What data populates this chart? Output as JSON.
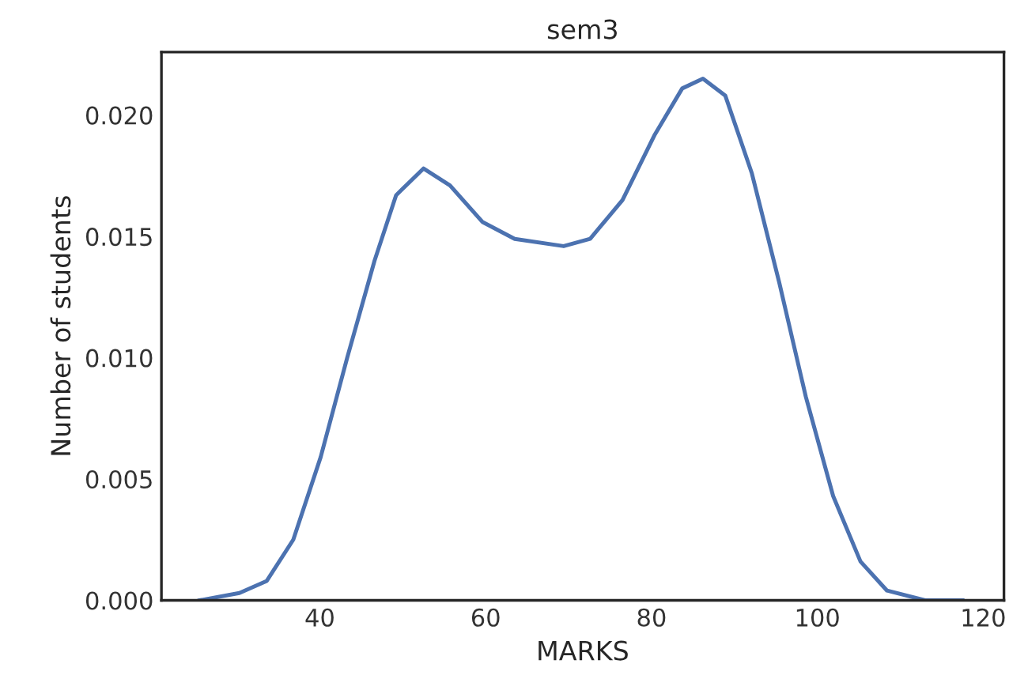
{
  "chart_data": {
    "type": "line",
    "title": "sem3",
    "xlabel": "MARKS",
    "ylabel": "Number of students",
    "x": [
      25.5,
      30.3,
      33.6,
      36.8,
      40.1,
      43.3,
      46.6,
      49.2,
      52.5,
      55.7,
      59.6,
      63.5,
      69.4,
      72.6,
      76.5,
      80.4,
      83.7,
      86.2,
      88.9,
      92.1,
      95.4,
      98.6,
      101.9,
      105.2,
      108.4,
      113.0,
      117.5
    ],
    "series": [
      {
        "color": "#4c72b0",
        "values": [
          0.0,
          0.0003,
          0.0008,
          0.0025,
          0.0059,
          0.01,
          0.014,
          0.0167,
          0.0178,
          0.0171,
          0.0156,
          0.0149,
          0.0146,
          0.0149,
          0.0165,
          0.0192,
          0.0211,
          0.0215,
          0.0208,
          0.0176,
          0.0131,
          0.0084,
          0.0043,
          0.0016,
          0.0004,
          0.0,
          0.0
        ]
      }
    ],
    "xlim": [
      20.9,
      122.5
    ],
    "ylim": [
      0,
      0.0226
    ],
    "xticks": [
      40,
      60,
      80,
      100,
      120
    ],
    "yticks": [
      {
        "value": 0,
        "label": "0.000"
      },
      {
        "value": 0.005,
        "label": "0.005"
      },
      {
        "value": 0.01,
        "label": "0.010"
      },
      {
        "value": 0.015,
        "label": "0.015"
      },
      {
        "value": 0.02,
        "label": "0.020"
      }
    ],
    "grid": false,
    "marker": "none",
    "line_style": "solid"
  }
}
